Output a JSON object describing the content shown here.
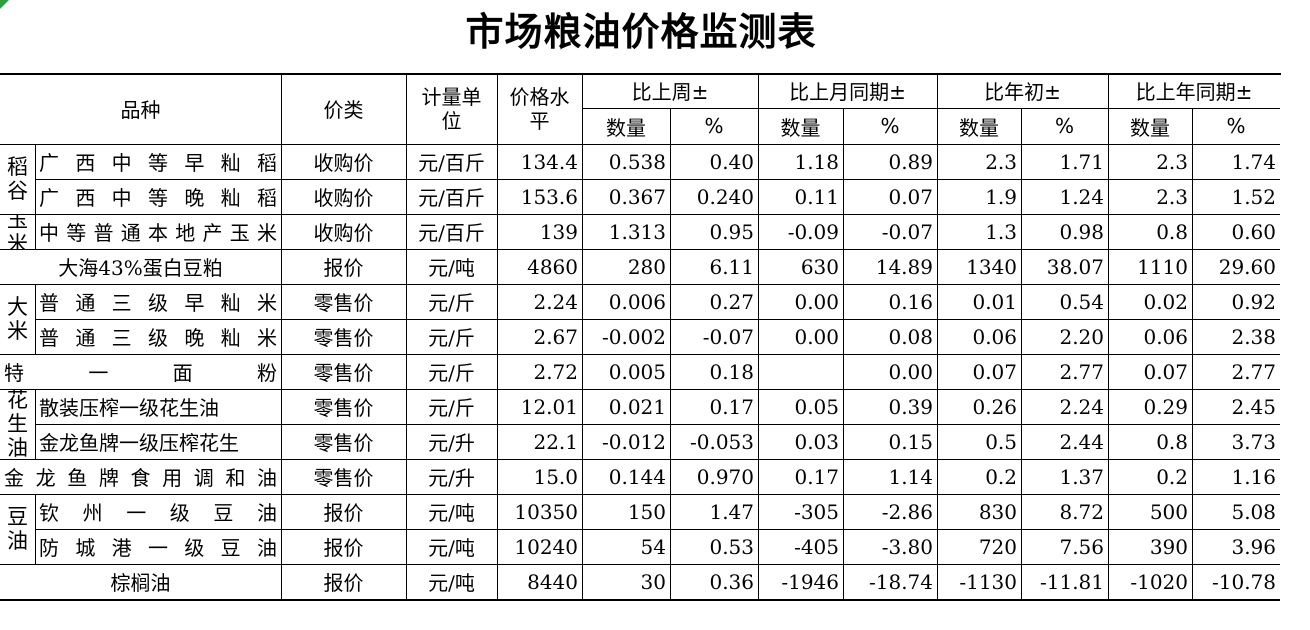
{
  "title": "市场粮油价格监测表",
  "header": {
    "variety": "品种",
    "price_type": "价类",
    "unit": "计量单位",
    "price_level": "价格水平",
    "groups": [
      "比上周±",
      "比上月同期±",
      "比年初±",
      "比上年同期±"
    ],
    "qty": "数量",
    "pct": "%"
  },
  "rows": [
    {
      "group": "稻谷",
      "name": "广西中等早籼稻",
      "type": "收购价",
      "unit": "元/百斤",
      "price": "134.4",
      "w_q": "0.538",
      "w_p": "0.40",
      "m_q": "1.18",
      "m_p": "0.89",
      "y_q": "2.3",
      "y_p": "1.71",
      "ly_q": "2.3",
      "ly_p": "1.74"
    },
    {
      "group": "",
      "name": "广西中等晚籼稻",
      "type": "收购价",
      "unit": "元/百斤",
      "price": "153.6",
      "w_q": "0.367",
      "w_p": "0.240",
      "m_q": "0.11",
      "m_p": "0.07",
      "y_q": "1.9",
      "y_p": "1.24",
      "ly_q": "2.3",
      "ly_p": "1.52"
    },
    {
      "group": "玉米",
      "name": "中等普通本地产玉米",
      "type": "收购价",
      "unit": "元/百斤",
      "price": "139",
      "w_q": "1.313",
      "w_p": "0.95",
      "m_q": "-0.09",
      "m_p": "-0.07",
      "y_q": "1.3",
      "y_p": "0.98",
      "ly_q": "0.8",
      "ly_p": "0.60"
    },
    {
      "group": "",
      "name": "大海43%蛋白豆粕",
      "type": "报价",
      "unit": "元/吨",
      "price": "4860",
      "w_q": "280",
      "w_p": "6.11",
      "m_q": "630",
      "m_p": "14.89",
      "y_q": "1340",
      "y_p": "38.07",
      "ly_q": "1110",
      "ly_p": "29.60"
    },
    {
      "group": "大米",
      "name": "普通三级早籼米",
      "type": "零售价",
      "unit": "元/斤",
      "price": "2.24",
      "w_q": "0.006",
      "w_p": "0.27",
      "m_q": "0.00",
      "m_p": "0.16",
      "y_q": "0.01",
      "y_p": "0.54",
      "ly_q": "0.02",
      "ly_p": "0.92"
    },
    {
      "group": "",
      "name": "普通三级晚籼米",
      "type": "零售价",
      "unit": "元/斤",
      "price": "2.67",
      "w_q": "-0.002",
      "w_p": "-0.07",
      "m_q": "0.00",
      "m_p": "0.08",
      "y_q": "0.06",
      "y_p": "2.20",
      "ly_q": "0.06",
      "ly_p": "2.38"
    },
    {
      "group": "",
      "name": "特一面粉",
      "type": "零售价",
      "unit": "元/斤",
      "price": "2.72",
      "w_q": "0.005",
      "w_p": "0.18",
      "m_q": "",
      "m_p": "0.00",
      "y_q": "0.07",
      "y_p": "2.77",
      "ly_q": "0.07",
      "ly_p": "2.77"
    },
    {
      "group": "花生油",
      "name": "散装压榨一级花生油",
      "type": "零售价",
      "unit": "元/斤",
      "price": "12.01",
      "w_q": "0.021",
      "w_p": "0.17",
      "m_q": "0.05",
      "m_p": "0.39",
      "y_q": "0.26",
      "y_p": "2.24",
      "ly_q": "0.29",
      "ly_p": "2.45"
    },
    {
      "group": "",
      "name": "金龙鱼牌一级压榨花生",
      "type": "零售价",
      "unit": "元/升",
      "price": "22.1",
      "w_q": "-0.012",
      "w_p": "-0.053",
      "m_q": "0.03",
      "m_p": "0.15",
      "y_q": "0.5",
      "y_p": "2.44",
      "ly_q": "0.8",
      "ly_p": "3.73"
    },
    {
      "group": "",
      "name": "金龙鱼牌食用调和油",
      "type": "零售价",
      "unit": "元/升",
      "price": "15.0",
      "w_q": "0.144",
      "w_p": "0.970",
      "m_q": "0.17",
      "m_p": "1.14",
      "y_q": "0.2",
      "y_p": "1.37",
      "ly_q": "0.2",
      "ly_p": "1.16"
    },
    {
      "group": "豆油",
      "name": "钦州一级豆油",
      "type": "报价",
      "unit": "元/吨",
      "price": "10350",
      "w_q": "150",
      "w_p": "1.47",
      "m_q": "-305",
      "m_p": "-2.86",
      "y_q": "830",
      "y_p": "8.72",
      "ly_q": "500",
      "ly_p": "5.08"
    },
    {
      "group": "",
      "name": "防城港一级豆油",
      "type": "报价",
      "unit": "元/吨",
      "price": "10240",
      "w_q": "54",
      "w_p": "0.53",
      "m_q": "-405",
      "m_p": "-3.80",
      "y_q": "720",
      "y_p": "7.56",
      "ly_q": "390",
      "ly_p": "3.96"
    },
    {
      "group": "",
      "name": "棕榈油",
      "type": "报价",
      "unit": "元/吨",
      "price": "8440",
      "w_q": "30",
      "w_p": "0.36",
      "m_q": "-1946",
      "m_p": "-18.74",
      "y_q": "-1130",
      "y_p": "-11.81",
      "ly_q": "-1020",
      "ly_p": "-10.78"
    }
  ]
}
